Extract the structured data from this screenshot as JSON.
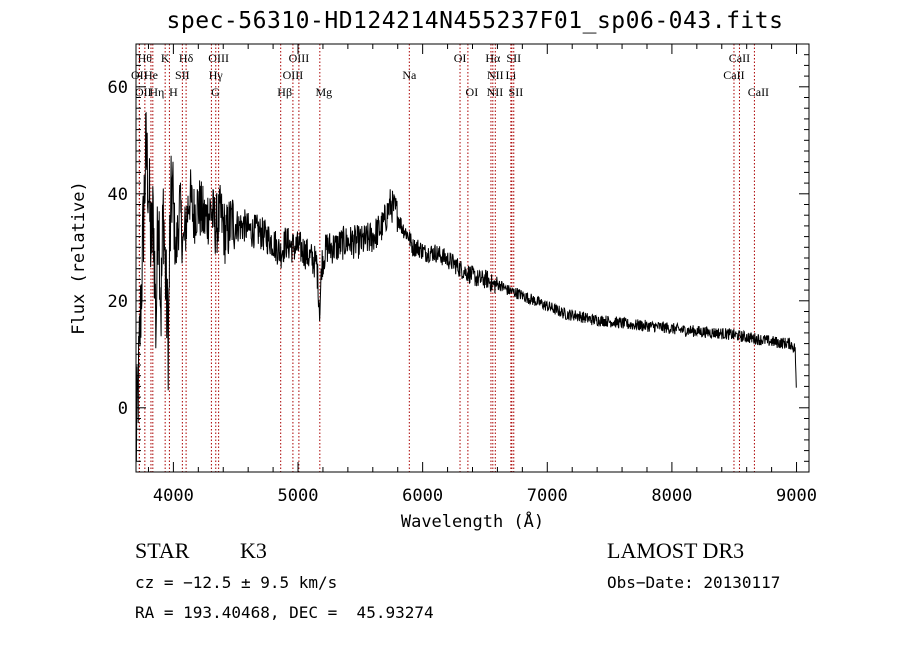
{
  "chart_data": {
    "type": "line",
    "title": "spec-56310-HD124214N455237F01_sp06-043.fits",
    "xlabel": "Wavelength (Å)",
    "ylabel": "Flux (relative)",
    "xlim": [
      3700,
      9100
    ],
    "ylim": [
      -12,
      68
    ],
    "xticks": [
      4000,
      5000,
      6000,
      7000,
      8000,
      9000
    ],
    "yticks": [
      0,
      20,
      40,
      60
    ],
    "series": [
      {
        "name": "flux",
        "x": [
          3700,
          3720,
          3740,
          3760,
          3780,
          3800,
          3820,
          3840,
          3860,
          3880,
          3900,
          3920,
          3940,
          3960,
          3970,
          3990,
          4020,
          4050,
          4080,
          4100,
          4130,
          4160,
          4200,
          4250,
          4300,
          4340,
          4380,
          4420,
          4470,
          4520,
          4570,
          4620,
          4680,
          4740,
          4800,
          4861,
          4900,
          4960,
          5010,
          5060,
          5100,
          5150,
          5175,
          5190,
          5230,
          5300,
          5380,
          5450,
          5520,
          5600,
          5680,
          5740,
          5780,
          5830,
          5890,
          5920,
          5960,
          6020,
          6100,
          6180,
          6250,
          6300,
          6380,
          6450,
          6520,
          6563,
          6620,
          6680,
          6750,
          6850,
          6950,
          7050,
          7150,
          7250,
          7350,
          7450,
          7550,
          7650,
          7750,
          7850,
          7950,
          8050,
          8150,
          8250,
          8350,
          8450,
          8550,
          8650,
          8750,
          8850,
          8950,
          8990,
          9000
        ],
        "values": [
          -8,
          5,
          20,
          35,
          48,
          42,
          30,
          36,
          15,
          40,
          18,
          38,
          22,
          12,
          30,
          42,
          28,
          38,
          30,
          34,
          40,
          36,
          38,
          35,
          37,
          34,
          36,
          32,
          35,
          34,
          34,
          33,
          33,
          32,
          31,
          29,
          31,
          30,
          30,
          29,
          28,
          27,
          18,
          27,
          30,
          30,
          31,
          31,
          31,
          32,
          34,
          38,
          37,
          34,
          32,
          30,
          30,
          29,
          29,
          28,
          27,
          26,
          25,
          24,
          24,
          23,
          23,
          22,
          21.5,
          20.5,
          19.5,
          18.5,
          17.5,
          17.2,
          16.5,
          16.3,
          16,
          15.6,
          15.4,
          15.2,
          15,
          14.6,
          14.4,
          14.2,
          14,
          13.8,
          13.4,
          13,
          12.6,
          12.2,
          12,
          11,
          1
        ]
      }
    ],
    "lines": [
      {
        "label": "Hθ",
        "wl": 3771,
        "row": 1
      },
      {
        "label": "K",
        "wl": 3934,
        "row": 1
      },
      {
        "label": "Hδ",
        "wl": 4102,
        "row": 1
      },
      {
        "label": "OIII",
        "wl": 4363,
        "row": 1
      },
      {
        "label": "OIII",
        "wl": 5007,
        "row": 1
      },
      {
        "label": "OI",
        "wl": 6300,
        "row": 1
      },
      {
        "label": "Hα",
        "wl": 6563,
        "row": 1
      },
      {
        "label": "SII",
        "wl": 6731,
        "row": 1
      },
      {
        "label": "CaII",
        "wl": 8542,
        "row": 1
      },
      {
        "label": "OII",
        "wl": 3727,
        "row": 2
      },
      {
        "label": "He",
        "wl": 3820,
        "row": 2
      },
      {
        "label": "SII",
        "wl": 4072,
        "row": 2
      },
      {
        "label": "Hγ",
        "wl": 4340,
        "row": 2
      },
      {
        "label": "OIII",
        "wl": 4959,
        "row": 2
      },
      {
        "label": "Na",
        "wl": 5893,
        "row": 2
      },
      {
        "label": "NII",
        "wl": 6583,
        "row": 2
      },
      {
        "label": "Li",
        "wl": 6708,
        "row": 2
      },
      {
        "label": "CaII",
        "wl": 8498,
        "row": 2
      },
      {
        "label": "OII",
        "wl": 3727,
        "row": 3
      },
      {
        "label": "Hη",
        "wl": 3835,
        "row": 3
      },
      {
        "label": "H",
        "wl": 3968,
        "row": 3
      },
      {
        "label": "G",
        "wl": 4305,
        "row": 3
      },
      {
        "label": "Hβ",
        "wl": 4861,
        "row": 3
      },
      {
        "label": "Mg",
        "wl": 5175,
        "row": 3
      },
      {
        "label": "OI",
        "wl": 6363,
        "row": 3
      },
      {
        "label": "NII",
        "wl": 6548,
        "row": 3
      },
      {
        "label": "SII",
        "wl": 6716,
        "row": 3
      },
      {
        "label": "CaII",
        "wl": 8662,
        "row": 3
      }
    ],
    "line_color": "#aa0000"
  },
  "info": {
    "object_type": "STAR",
    "subclass": "K3",
    "survey": "LAMOST DR3",
    "cz": "cz = −12.5 ± 9.5 km/s",
    "obs_date": "Obs−Date: 20130117",
    "coords": "RA = 193.40468, DEC =  45.93274"
  }
}
